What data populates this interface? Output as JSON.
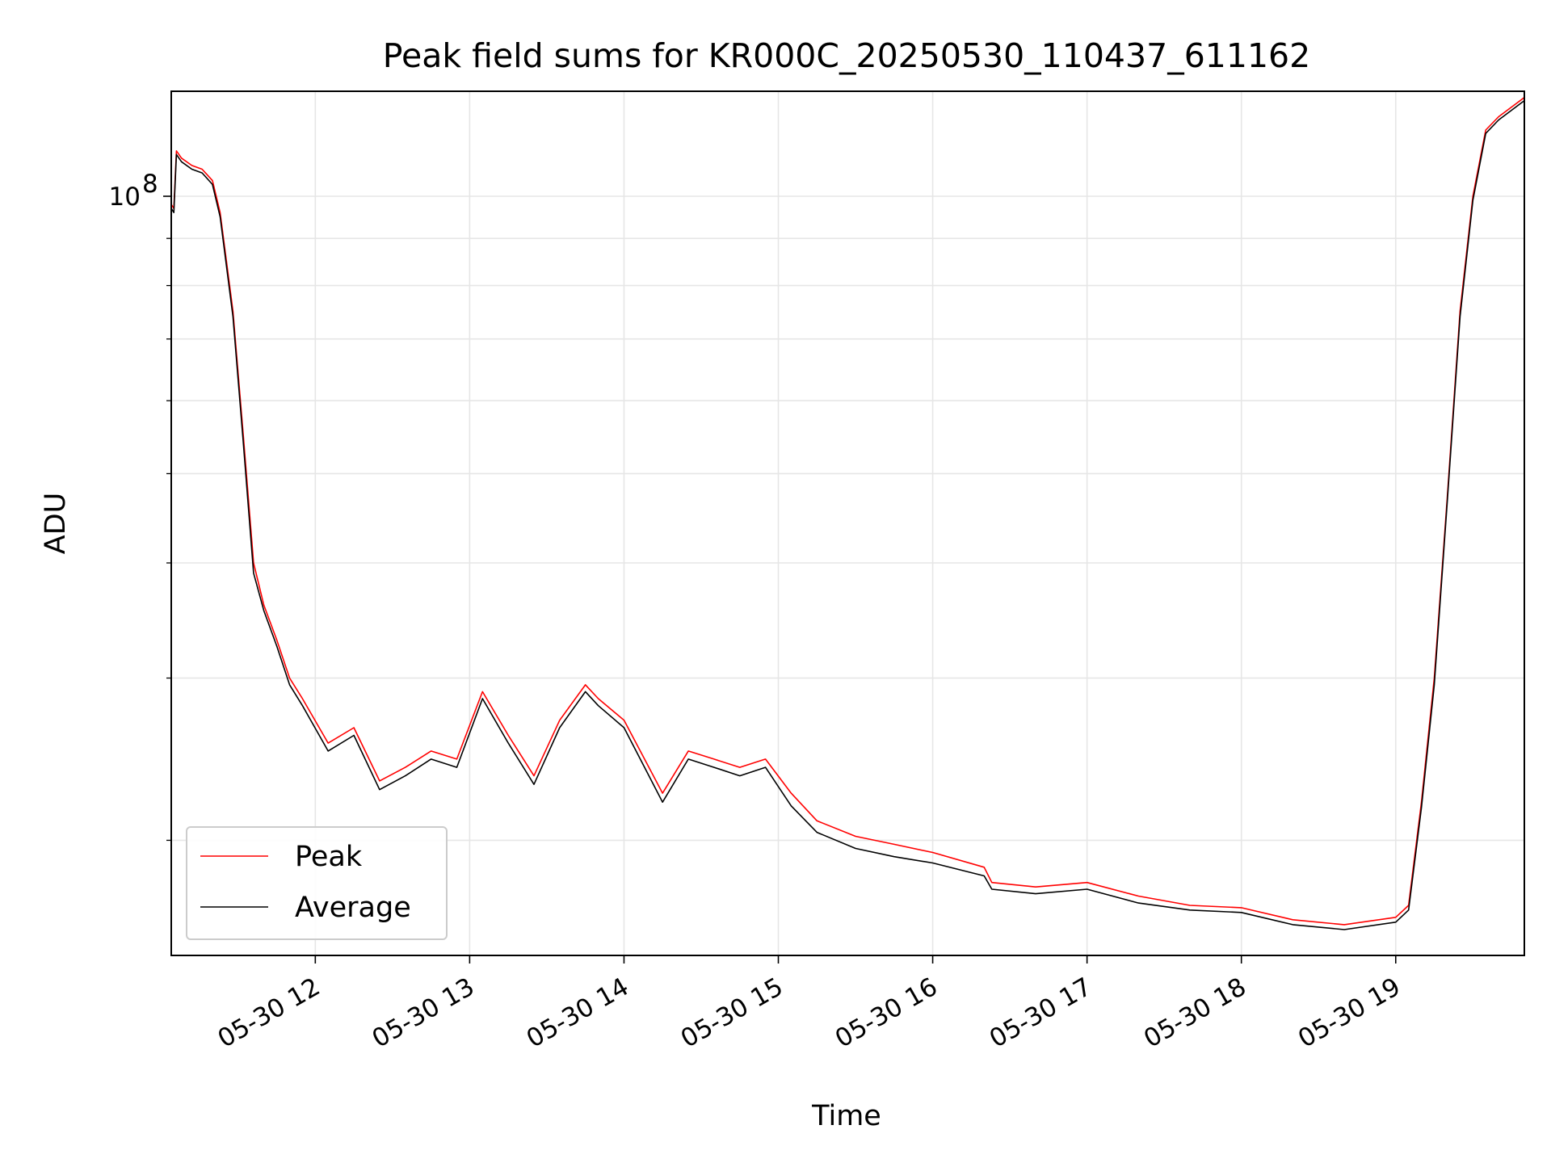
{
  "chart_data": {
    "type": "line",
    "title": "Peak field sums for KR000C_20250530_110437_611162",
    "xlabel": "Time",
    "ylabel": "ADU",
    "y_scale": "log",
    "ylim": [
      15000000,
      130000000
    ],
    "y_major_ticks": [
      {
        "value": 100000000,
        "base": "10",
        "exp": "8"
      }
    ],
    "y_minor_ticks": [
      20000000,
      30000000,
      40000000,
      50000000,
      60000000,
      70000000,
      80000000,
      90000000
    ],
    "x_range": [
      "2025-05-30 11:04",
      "2025-05-30 19:50"
    ],
    "x_ticks": [
      {
        "time": "2025-05-30 12:00",
        "label": "05-30 12"
      },
      {
        "time": "2025-05-30 13:00",
        "label": "05-30 13"
      },
      {
        "time": "2025-05-30 14:00",
        "label": "05-30 14"
      },
      {
        "time": "2025-05-30 15:00",
        "label": "05-30 15"
      },
      {
        "time": "2025-05-30 16:00",
        "label": "05-30 16"
      },
      {
        "time": "2025-05-30 17:00",
        "label": "05-30 17"
      },
      {
        "time": "2025-05-30 18:00",
        "label": "05-30 18"
      },
      {
        "time": "2025-05-30 19:00",
        "label": "05-30 19"
      }
    ],
    "grid": true,
    "legend_position": "lower-left",
    "series": [
      {
        "name": "Peak",
        "color": "#ff0000",
        "x": [
          "2025-05-30 11:04",
          "2025-05-30 11:05",
          "2025-05-30 11:06",
          "2025-05-30 11:08",
          "2025-05-30 11:12",
          "2025-05-30 11:16",
          "2025-05-30 11:20",
          "2025-05-30 11:23",
          "2025-05-30 11:28",
          "2025-05-30 11:32",
          "2025-05-30 11:36",
          "2025-05-30 11:40",
          "2025-05-30 11:45",
          "2025-05-30 11:50",
          "2025-05-30 11:55",
          "2025-05-30 12:05",
          "2025-05-30 12:15",
          "2025-05-30 12:25",
          "2025-05-30 12:35",
          "2025-05-30 12:45",
          "2025-05-30 12:55",
          "2025-05-30 13:05",
          "2025-05-30 13:15",
          "2025-05-30 13:25",
          "2025-05-30 13:35",
          "2025-05-30 13:45",
          "2025-05-30 13:50",
          "2025-05-30 14:00",
          "2025-05-30 14:15",
          "2025-05-30 14:25",
          "2025-05-30 14:35",
          "2025-05-30 14:45",
          "2025-05-30 14:55",
          "2025-05-30 15:05",
          "2025-05-30 15:15",
          "2025-05-30 15:30",
          "2025-05-30 15:45",
          "2025-05-30 16:00",
          "2025-05-30 16:20",
          "2025-05-30 16:23",
          "2025-05-30 16:40",
          "2025-05-30 17:00",
          "2025-05-30 17:20",
          "2025-05-30 17:40",
          "2025-05-30 18:00",
          "2025-05-30 18:20",
          "2025-05-30 18:40",
          "2025-05-30 19:00",
          "2025-05-30 19:05",
          "2025-05-30 19:10",
          "2025-05-30 19:15",
          "2025-05-30 19:20",
          "2025-05-30 19:25",
          "2025-05-30 19:30",
          "2025-05-30 19:35",
          "2025-05-30 19:40",
          "2025-05-30 19:50"
        ],
        "y": [
          98000000,
          97000000,
          112000000,
          110000000,
          108000000,
          107000000,
          104000000,
          96000000,
          75000000,
          55000000,
          40000000,
          36000000,
          33000000,
          30000000,
          28500000,
          25500000,
          26500000,
          23200000,
          24000000,
          25000000,
          24500000,
          29000000,
          26000000,
          23500000,
          27000000,
          29500000,
          28500000,
          27000000,
          22500000,
          25000000,
          24500000,
          24000000,
          24500000,
          22500000,
          21000000,
          20200000,
          19800000,
          19400000,
          18700000,
          18000000,
          17800000,
          18000000,
          17400000,
          17000000,
          16900000,
          16400000,
          16200000,
          16500000,
          17000000,
          22000000,
          30000000,
          47000000,
          75000000,
          100000000,
          118000000,
          122000000,
          128000000
        ]
      },
      {
        "name": "Average",
        "color": "#000000",
        "x": [
          "2025-05-30 11:04",
          "2025-05-30 11:05",
          "2025-05-30 11:06",
          "2025-05-30 11:08",
          "2025-05-30 11:12",
          "2025-05-30 11:16",
          "2025-05-30 11:20",
          "2025-05-30 11:23",
          "2025-05-30 11:28",
          "2025-05-30 11:32",
          "2025-05-30 11:36",
          "2025-05-30 11:40",
          "2025-05-30 11:45",
          "2025-05-30 11:50",
          "2025-05-30 11:55",
          "2025-05-30 12:05",
          "2025-05-30 12:15",
          "2025-05-30 12:25",
          "2025-05-30 12:35",
          "2025-05-30 12:45",
          "2025-05-30 12:55",
          "2025-05-30 13:05",
          "2025-05-30 13:15",
          "2025-05-30 13:25",
          "2025-05-30 13:35",
          "2025-05-30 13:45",
          "2025-05-30 13:50",
          "2025-05-30 14:00",
          "2025-05-30 14:15",
          "2025-05-30 14:25",
          "2025-05-30 14:35",
          "2025-05-30 14:45",
          "2025-05-30 14:55",
          "2025-05-30 15:05",
          "2025-05-30 15:15",
          "2025-05-30 15:30",
          "2025-05-30 15:45",
          "2025-05-30 16:00",
          "2025-05-30 16:20",
          "2025-05-30 16:23",
          "2025-05-30 16:40",
          "2025-05-30 17:00",
          "2025-05-30 17:20",
          "2025-05-30 17:40",
          "2025-05-30 18:00",
          "2025-05-30 18:20",
          "2025-05-30 18:40",
          "2025-05-30 19:00",
          "2025-05-30 19:05",
          "2025-05-30 19:10",
          "2025-05-30 19:15",
          "2025-05-30 19:20",
          "2025-05-30 19:25",
          "2025-05-30 19:30",
          "2025-05-30 19:35",
          "2025-05-30 19:40",
          "2025-05-30 19:50"
        ],
        "y": [
          97000000,
          96000000,
          111000000,
          109000000,
          107000000,
          106000000,
          103000000,
          95000000,
          74000000,
          54000000,
          39000000,
          35500000,
          32500000,
          29500000,
          28000000,
          25000000,
          26000000,
          22700000,
          23500000,
          24500000,
          24000000,
          28500000,
          25500000,
          23000000,
          26500000,
          29000000,
          28000000,
          26500000,
          22000000,
          24500000,
          24000000,
          23500000,
          24000000,
          21800000,
          20400000,
          19600000,
          19200000,
          18900000,
          18300000,
          17700000,
          17500000,
          17700000,
          17100000,
          16800000,
          16700000,
          16200000,
          16000000,
          16300000,
          16800000,
          21700000,
          29500000,
          46500000,
          74000000,
          99000000,
          117000000,
          121000000,
          127000000
        ]
      }
    ]
  }
}
